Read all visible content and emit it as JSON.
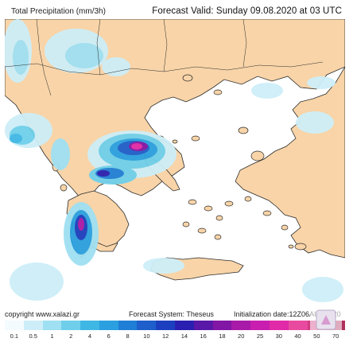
{
  "header": {
    "title_left": "Total Precipitation (mm/3h)",
    "title_right": "Forecast Valid:  Sunday 09.08.2020 at 03 UTC"
  },
  "footer": {
    "copyright": "copyright www.xalazi.gr",
    "system": "Forecast System: Theseus",
    "init": "Initialization date:12Z06AUG2020"
  },
  "legend": {
    "ticks": [
      "0.1",
      "0.5",
      "1",
      "2",
      "4",
      "6",
      "8",
      "10",
      "12",
      "14",
      "16",
      "18",
      "20",
      "25",
      "30",
      "40",
      "50",
      "70"
    ],
    "colors": [
      "#f4fbff",
      "#cdeef8",
      "#9fe0f2",
      "#6fcfea",
      "#3fb7e4",
      "#2aa0e0",
      "#1f7fd6",
      "#1e5fcb",
      "#1c3fc0",
      "#2a1fb0",
      "#5a18a8",
      "#8217a6",
      "#a81aa8",
      "#c81fb0",
      "#e02aa8",
      "#e84aa0",
      "#d23a82",
      "#b0305c"
    ]
  },
  "colors": {
    "land": "#f8d4a8",
    "sea": "#ffffff",
    "outline": "#2b2b2b"
  }
}
